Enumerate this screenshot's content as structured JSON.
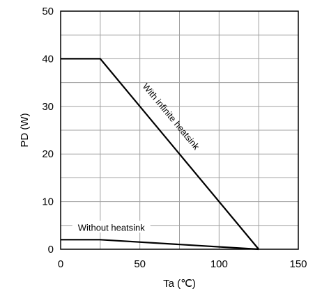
{
  "chart_data": {
    "type": "line",
    "title": "",
    "xlabel": "Ta (℃)",
    "ylabel": "PD (W)",
    "xlim": [
      0,
      150
    ],
    "ylim": [
      0,
      50
    ],
    "x_ticks": [
      0,
      25,
      50,
      75,
      100,
      125,
      150
    ],
    "y_ticks": [
      0,
      5,
      10,
      15,
      20,
      25,
      30,
      35,
      40,
      45,
      50
    ],
    "x_tick_labels": [
      "0",
      "50",
      "100",
      "150"
    ],
    "y_tick_labels": [
      "0",
      "10",
      "20",
      "30",
      "40",
      "50"
    ],
    "grid": true,
    "series": [
      {
        "name": "With infinite heatsink",
        "x": [
          0,
          25,
          125
        ],
        "y": [
          40,
          40,
          0
        ]
      },
      {
        "name": "Without heatsink",
        "x": [
          0,
          25,
          125
        ],
        "y": [
          2,
          2,
          0
        ]
      }
    ],
    "colors": {
      "line": "#000000",
      "grid": "#a0a0a0",
      "frame": "#000000"
    }
  }
}
